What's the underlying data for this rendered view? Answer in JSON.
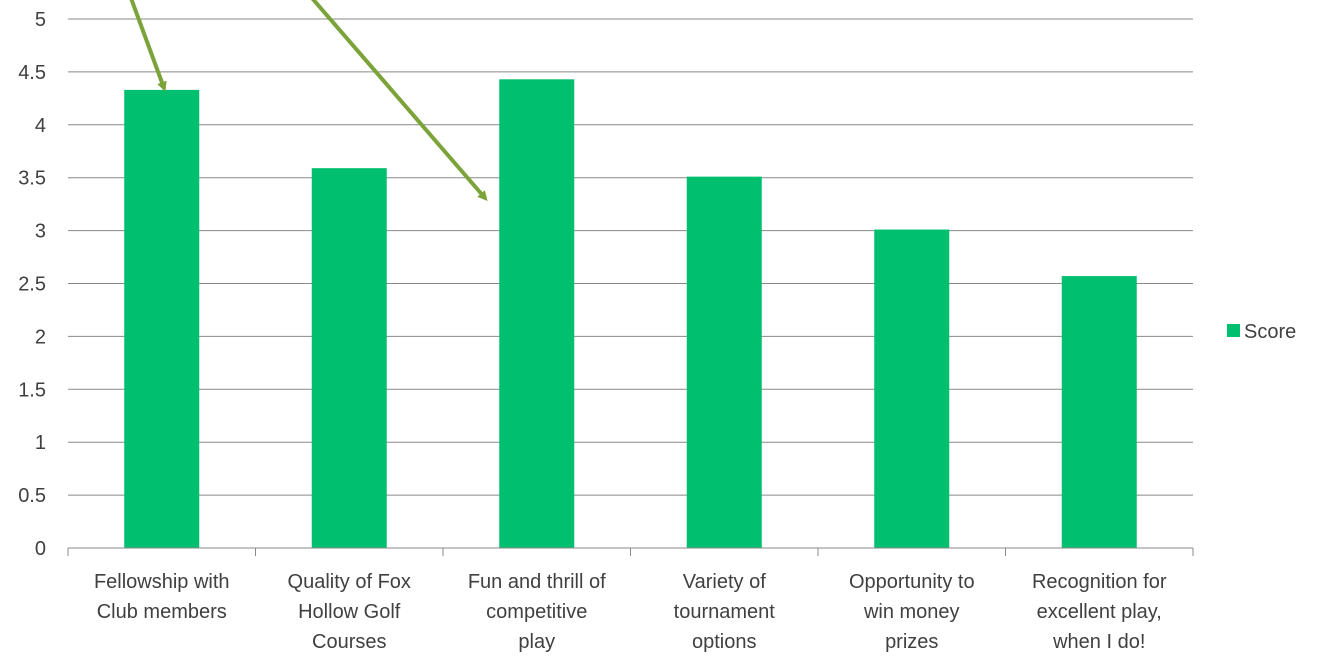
{
  "chart_data": {
    "type": "bar",
    "categories": [
      [
        "Fellowship with",
        "Club members"
      ],
      [
        "Quality of Fox",
        "Hollow Golf",
        "Courses"
      ],
      [
        "Fun and thrill of",
        "competitive",
        "play"
      ],
      [
        "Variety of",
        "tournament",
        "options"
      ],
      [
        "Opportunity to",
        "win money",
        "prizes"
      ],
      [
        "Recognition for",
        "excellent play,",
        "when I do!"
      ]
    ],
    "series": [
      {
        "name": "Score",
        "values": [
          4.33,
          3.59,
          4.43,
          3.51,
          3.01,
          2.57
        ]
      }
    ],
    "y_ticks": [
      "0",
      "0.5",
      "1",
      "1.5",
      "2",
      "2.5",
      "3",
      "3.5",
      "4",
      "4.5",
      "5"
    ],
    "ylim": [
      0,
      5
    ],
    "grid": true,
    "legend": "right",
    "colors": {
      "bar": "#00BF6F",
      "arrow": "#7BA33A",
      "grid": "#898989",
      "text": "#404040"
    },
    "annotations": [
      {
        "type": "arrow",
        "points_to": "Fellowship with Club members"
      },
      {
        "type": "arrow",
        "points_to": "Fun and thrill of competitive play"
      }
    ]
  }
}
